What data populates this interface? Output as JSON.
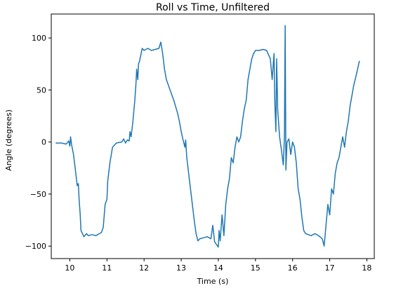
{
  "chart_data": {
    "type": "line",
    "title": "Roll vs Time, Unfiltered",
    "xlabel": "Time (s)",
    "ylabel": "Angle (degrees)",
    "xlim": [
      9.5,
      18.2
    ],
    "ylim": [
      -112,
      123
    ],
    "xticks": [
      10,
      11,
      12,
      13,
      14,
      15,
      16,
      17,
      18
    ],
    "xtick_labels": [
      "10",
      "11",
      "12",
      "13",
      "14",
      "15",
      "16",
      "17",
      "18"
    ],
    "yticks": [
      -100,
      -50,
      0,
      50,
      100
    ],
    "ytick_labels": [
      "−100",
      "−50",
      "0",
      "50",
      "100"
    ],
    "grid": false,
    "series": [
      {
        "color": "#1f77b4",
        "points": [
          [
            9.62,
            -1
          ],
          [
            9.78,
            -1
          ],
          [
            9.9,
            -2
          ],
          [
            9.97,
            1
          ],
          [
            10.0,
            -4
          ],
          [
            10.02,
            5
          ],
          [
            10.05,
            -3
          ],
          [
            10.1,
            -12
          ],
          [
            10.15,
            -27
          ],
          [
            10.2,
            -42
          ],
          [
            10.23,
            -40
          ],
          [
            10.25,
            -55
          ],
          [
            10.28,
            -70
          ],
          [
            10.3,
            -85
          ],
          [
            10.34,
            -88
          ],
          [
            10.38,
            -91
          ],
          [
            10.45,
            -88
          ],
          [
            10.5,
            -90
          ],
          [
            10.6,
            -89
          ],
          [
            10.7,
            -90
          ],
          [
            10.8,
            -88
          ],
          [
            10.85,
            -87
          ],
          [
            10.9,
            -82
          ],
          [
            10.95,
            -60
          ],
          [
            11.0,
            -55
          ],
          [
            11.02,
            -38
          ],
          [
            11.08,
            -20
          ],
          [
            11.15,
            -5
          ],
          [
            11.25,
            -1
          ],
          [
            11.4,
            0
          ],
          [
            11.45,
            3
          ],
          [
            11.5,
            -1
          ],
          [
            11.55,
            2
          ],
          [
            11.6,
            1
          ],
          [
            11.62,
            10
          ],
          [
            11.65,
            5
          ],
          [
            11.7,
            20
          ],
          [
            11.73,
            32
          ],
          [
            11.75,
            40
          ],
          [
            11.78,
            55
          ],
          [
            11.8,
            70
          ],
          [
            11.83,
            60
          ],
          [
            11.85,
            75
          ],
          [
            11.88,
            78
          ],
          [
            11.92,
            85
          ],
          [
            11.95,
            90
          ],
          [
            12.0,
            88
          ],
          [
            12.1,
            90
          ],
          [
            12.2,
            88
          ],
          [
            12.3,
            89
          ],
          [
            12.4,
            90
          ],
          [
            12.45,
            96
          ],
          [
            12.5,
            85
          ],
          [
            12.55,
            70
          ],
          [
            12.6,
            60
          ],
          [
            12.7,
            50
          ],
          [
            12.8,
            40
          ],
          [
            12.9,
            28
          ],
          [
            12.95,
            20
          ],
          [
            13.0,
            10
          ],
          [
            13.05,
            2
          ],
          [
            13.1,
            -5
          ],
          [
            13.12,
            2
          ],
          [
            13.15,
            -15
          ],
          [
            13.2,
            -30
          ],
          [
            13.25,
            -45
          ],
          [
            13.3,
            -60
          ],
          [
            13.35,
            -75
          ],
          [
            13.4,
            -88
          ],
          [
            13.45,
            -95
          ],
          [
            13.5,
            -93
          ],
          [
            13.6,
            -92
          ],
          [
            13.7,
            -91
          ],
          [
            13.8,
            -93
          ],
          [
            13.85,
            -80
          ],
          [
            13.9,
            -96
          ],
          [
            14.0,
            -101
          ],
          [
            14.02,
            -85
          ],
          [
            14.05,
            -95
          ],
          [
            14.1,
            -70
          ],
          [
            14.15,
            -90
          ],
          [
            14.2,
            -60
          ],
          [
            14.25,
            -45
          ],
          [
            14.3,
            -35
          ],
          [
            14.35,
            -15
          ],
          [
            14.4,
            -20
          ],
          [
            14.45,
            -5
          ],
          [
            14.5,
            5
          ],
          [
            14.55,
            0
          ],
          [
            14.6,
            5
          ],
          [
            14.65,
            20
          ],
          [
            14.7,
            32
          ],
          [
            14.75,
            40
          ],
          [
            14.8,
            60
          ],
          [
            14.85,
            70
          ],
          [
            14.9,
            80
          ],
          [
            14.95,
            85
          ],
          [
            15.0,
            88
          ],
          [
            15.1,
            88
          ],
          [
            15.2,
            89
          ],
          [
            15.3,
            88
          ],
          [
            15.35,
            84
          ],
          [
            15.4,
            80
          ],
          [
            15.45,
            60
          ],
          [
            15.5,
            85
          ],
          [
            15.52,
            40
          ],
          [
            15.55,
            10
          ],
          [
            15.57,
            80
          ],
          [
            15.6,
            30
          ],
          [
            15.65,
            5
          ],
          [
            15.7,
            -8
          ],
          [
            15.75,
            -22
          ],
          [
            15.78,
            5
          ],
          [
            15.8,
            112
          ],
          [
            15.82,
            -27
          ],
          [
            15.85,
            0
          ],
          [
            15.9,
            3
          ],
          [
            15.95,
            -12
          ],
          [
            16.0,
            0
          ],
          [
            16.05,
            -5
          ],
          [
            16.1,
            -20
          ],
          [
            16.15,
            -45
          ],
          [
            16.2,
            -55
          ],
          [
            16.25,
            -72
          ],
          [
            16.3,
            -85
          ],
          [
            16.35,
            -88
          ],
          [
            16.5,
            -90
          ],
          [
            16.6,
            -88
          ],
          [
            16.7,
            -90
          ],
          [
            16.8,
            -93
          ],
          [
            16.85,
            -100
          ],
          [
            16.9,
            -80
          ],
          [
            16.95,
            -60
          ],
          [
            17.0,
            -70
          ],
          [
            17.05,
            -45
          ],
          [
            17.1,
            -50
          ],
          [
            17.15,
            -30
          ],
          [
            17.2,
            -20
          ],
          [
            17.25,
            -15
          ],
          [
            17.3,
            -5
          ],
          [
            17.35,
            5
          ],
          [
            17.4,
            -5
          ],
          [
            17.45,
            10
          ],
          [
            17.5,
            20
          ],
          [
            17.55,
            35
          ],
          [
            17.6,
            45
          ],
          [
            17.65,
            55
          ],
          [
            17.7,
            62
          ],
          [
            17.75,
            70
          ],
          [
            17.8,
            78
          ]
        ]
      }
    ]
  }
}
